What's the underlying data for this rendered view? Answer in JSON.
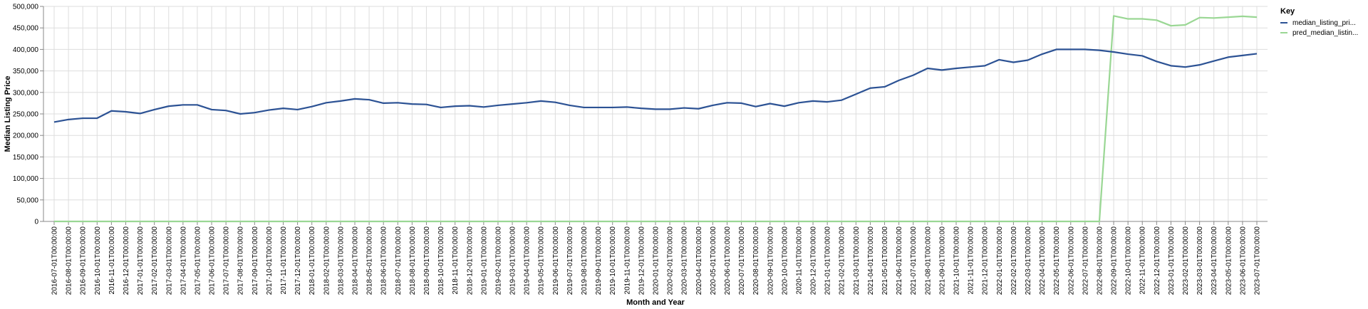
{
  "chart_data": {
    "type": "line",
    "xlabel": "Month and Year",
    "ylabel": "Median Listing Price",
    "ylim": [
      0,
      500000
    ],
    "yticks": [
      0,
      50000,
      100000,
      150000,
      200000,
      250000,
      300000,
      350000,
      400000,
      450000,
      500000
    ],
    "ytick_labels": [
      "0",
      "50,000",
      "100,000",
      "150,000",
      "200,000",
      "250,000",
      "300,000",
      "350,000",
      "400,000",
      "450,000",
      "500,000"
    ],
    "grid": true,
    "legend": {
      "title": "Key",
      "placement": "top-right"
    },
    "x": [
      "2016-07-01T00:00:00",
      "2016-08-01T00:00:00",
      "2016-09-01T00:00:00",
      "2016-10-01T00:00:00",
      "2016-11-01T00:00:00",
      "2016-12-01T00:00:00",
      "2017-01-01T00:00:00",
      "2017-02-01T00:00:00",
      "2017-03-01T00:00:00",
      "2017-04-01T00:00:00",
      "2017-05-01T00:00:00",
      "2017-06-01T00:00:00",
      "2017-07-01T00:00:00",
      "2017-08-01T00:00:00",
      "2017-09-01T00:00:00",
      "2017-10-01T00:00:00",
      "2017-11-01T00:00:00",
      "2017-12-01T00:00:00",
      "2018-01-01T00:00:00",
      "2018-02-01T00:00:00",
      "2018-03-01T00:00:00",
      "2018-04-01T00:00:00",
      "2018-05-01T00:00:00",
      "2018-06-01T00:00:00",
      "2018-07-01T00:00:00",
      "2018-08-01T00:00:00",
      "2018-09-01T00:00:00",
      "2018-10-01T00:00:00",
      "2018-11-01T00:00:00",
      "2018-12-01T00:00:00",
      "2019-01-01T00:00:00",
      "2019-02-01T00:00:00",
      "2019-03-01T00:00:00",
      "2019-04-01T00:00:00",
      "2019-05-01T00:00:00",
      "2019-06-01T00:00:00",
      "2019-07-01T00:00:00",
      "2019-08-01T00:00:00",
      "2019-09-01T00:00:00",
      "2019-10-01T00:00:00",
      "2019-11-01T00:00:00",
      "2019-12-01T00:00:00",
      "2020-01-01T00:00:00",
      "2020-02-01T00:00:00",
      "2020-03-01T00:00:00",
      "2020-04-01T00:00:00",
      "2020-05-01T00:00:00",
      "2020-06-01T00:00:00",
      "2020-07-01T00:00:00",
      "2020-08-01T00:00:00",
      "2020-09-01T00:00:00",
      "2020-10-01T00:00:00",
      "2020-11-01T00:00:00",
      "2020-12-01T00:00:00",
      "2021-01-01T00:00:00",
      "2021-02-01T00:00:00",
      "2021-03-01T00:00:00",
      "2021-04-01T00:00:00",
      "2021-05-01T00:00:00",
      "2021-06-01T00:00:00",
      "2021-07-01T00:00:00",
      "2021-08-01T00:00:00",
      "2021-09-01T00:00:00",
      "2021-10-01T00:00:00",
      "2021-11-01T00:00:00",
      "2021-12-01T00:00:00",
      "2022-01-01T00:00:00",
      "2022-02-01T00:00:00",
      "2022-03-01T00:00:00",
      "2022-04-01T00:00:00",
      "2022-05-01T00:00:00",
      "2022-06-01T00:00:00",
      "2022-07-01T00:00:00",
      "2022-08-01T00:00:00",
      "2022-09-01T00:00:00",
      "2022-10-01T00:00:00",
      "2022-11-01T00:00:00",
      "2022-12-01T00:00:00",
      "2023-01-01T00:00:00",
      "2023-02-01T00:00:00",
      "2023-03-01T00:00:00",
      "2023-04-01T00:00:00",
      "2023-05-01T00:00:00",
      "2023-06-01T00:00:00",
      "2023-07-01T00:00:00"
    ],
    "series": [
      {
        "name": "median_listing_pri...",
        "color": "#2c5294",
        "values": [
          231000,
          237000,
          240000,
          240000,
          257000,
          255000,
          251000,
          260000,
          268000,
          271000,
          271000,
          260000,
          258000,
          250000,
          253000,
          259000,
          263000,
          260000,
          267000,
          276000,
          280000,
          285000,
          283000,
          275000,
          276000,
          273000,
          272000,
          265000,
          268000,
          269000,
          266000,
          270000,
          273000,
          276000,
          280000,
          277000,
          270000,
          265000,
          265000,
          265000,
          266000,
          263000,
          261000,
          261000,
          264000,
          262000,
          270000,
          276000,
          275000,
          267000,
          274000,
          268000,
          276000,
          280000,
          278000,
          282000,
          296000,
          310000,
          313000,
          328000,
          340000,
          356000,
          352000,
          356000,
          359000,
          362000,
          376000,
          370000,
          375000,
          389000,
          400000,
          400000,
          400000,
          398000,
          394000,
          389000,
          385000,
          372000,
          362000,
          359000,
          364000,
          373000,
          382000,
          386000,
          390000
        ]
      },
      {
        "name": "pred_median_listin...",
        "color": "#9ad794",
        "values": [
          0,
          0,
          0,
          0,
          0,
          0,
          0,
          0,
          0,
          0,
          0,
          0,
          0,
          0,
          0,
          0,
          0,
          0,
          0,
          0,
          0,
          0,
          0,
          0,
          0,
          0,
          0,
          0,
          0,
          0,
          0,
          0,
          0,
          0,
          0,
          0,
          0,
          0,
          0,
          0,
          0,
          0,
          0,
          0,
          0,
          0,
          0,
          0,
          0,
          0,
          0,
          0,
          0,
          0,
          0,
          0,
          0,
          0,
          0,
          0,
          0,
          0,
          0,
          0,
          0,
          0,
          0,
          0,
          0,
          0,
          0,
          0,
          0,
          0,
          478000,
          471000,
          471000,
          468000,
          455000,
          457000,
          474000,
          473000,
          475000,
          477000,
          475000
        ]
      }
    ]
  }
}
